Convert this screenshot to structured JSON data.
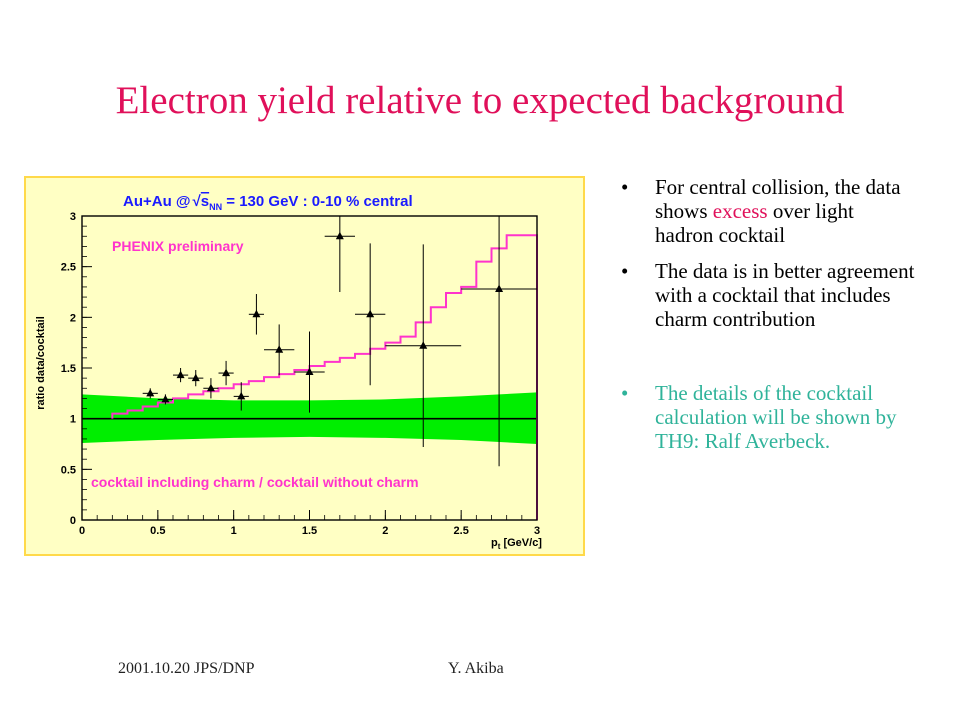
{
  "slide": {
    "title": "Electron yield relative to expected background",
    "bullets": [
      {
        "pre": "For central collision, the data shows ",
        "highlight": "excess",
        "post": " over light hadron cocktail"
      },
      {
        "text": "The data is in better agreement with a cocktail that includes charm contribution"
      },
      {
        "text": "The details of the cocktail calculation will be shown by TH9: Ralf Averbeck."
      }
    ],
    "bullet_glyph": "•",
    "footer_left": "2001.10.20 JPS/DNP",
    "footer_right": "Y. Akiba",
    "colors": {
      "title": "#e0105a",
      "highlight": "#e0105a",
      "note": "#2fb39a"
    }
  },
  "chart_data": {
    "type": "scatter",
    "title_prefix": "Au+Au @",
    "title_root": "s",
    "title_sub": "NN",
    "title_suffix": " = 130 GeV : 0-10 % central",
    "annotation_top": "PHENIX preliminary",
    "annotation_bottom": "cocktail including charm / cocktail without charm",
    "xlabel_main": "p",
    "xlabel_sub": "t",
    "xlabel_unit": " [GeV/c]",
    "ylabel": "ratio data/cocktail",
    "xlim": [
      0,
      3
    ],
    "ylim": [
      0,
      3
    ],
    "x_ticks": [
      0,
      0.5,
      1,
      1.5,
      2,
      2.5,
      3
    ],
    "x_tick_labels": [
      "0",
      "0.5",
      "1",
      "1.5",
      "2",
      "2.5",
      "3"
    ],
    "y_ticks": [
      0,
      0.5,
      1,
      1.5,
      2,
      2.5,
      3
    ],
    "y_tick_labels": [
      "0",
      "0.5",
      "1",
      "1.5",
      "2",
      "2.5",
      "3"
    ],
    "reference_line": 1.0,
    "band": {
      "x": [
        0,
        0.5,
        1,
        1.5,
        2,
        2.5,
        3
      ],
      "upper": [
        1.24,
        1.2,
        1.18,
        1.18,
        1.19,
        1.22,
        1.26
      ],
      "lower": [
        0.76,
        0.79,
        0.81,
        0.82,
        0.81,
        0.79,
        0.75
      ],
      "color": "#00ee00"
    },
    "charm_ratio": {
      "edges": [
        0.2,
        0.3,
        0.4,
        0.5,
        0.6,
        0.7,
        0.8,
        0.9,
        1.0,
        1.1,
        1.2,
        1.3,
        1.4,
        1.5,
        1.6,
        1.7,
        1.8,
        1.9,
        2.0,
        2.1,
        2.2,
        2.3,
        2.4,
        2.5,
        2.6,
        2.7,
        2.8,
        2.9,
        3.0
      ],
      "values": [
        1.05,
        1.08,
        1.12,
        1.16,
        1.2,
        1.24,
        1.27,
        1.3,
        1.34,
        1.37,
        1.41,
        1.44,
        1.48,
        1.52,
        1.56,
        1.6,
        1.64,
        1.69,
        1.75,
        1.81,
        1.95,
        2.1,
        2.24,
        2.3,
        2.55,
        2.68,
        2.81,
        2.81
      ],
      "color": "#ff33cc"
    },
    "points": [
      {
        "x": 0.45,
        "y": 1.25,
        "xerr": 0.05,
        "yerr": 0.05
      },
      {
        "x": 0.55,
        "y": 1.19,
        "xerr": 0.05,
        "yerr": 0.05
      },
      {
        "x": 0.65,
        "y": 1.43,
        "xerr": 0.05,
        "yerr": 0.07
      },
      {
        "x": 0.75,
        "y": 1.4,
        "xerr": 0.05,
        "yerr": 0.08
      },
      {
        "x": 0.85,
        "y": 1.3,
        "xerr": 0.05,
        "yerr": 0.1
      },
      {
        "x": 0.95,
        "y": 1.45,
        "xerr": 0.05,
        "yerr": 0.12
      },
      {
        "x": 1.05,
        "y": 1.22,
        "xerr": 0.05,
        "yerr": 0.14
      },
      {
        "x": 1.15,
        "y": 2.03,
        "xerr": 0.05,
        "yerr": 0.2
      },
      {
        "x": 1.3,
        "y": 1.68,
        "xerr": 0.1,
        "yerr": 0.25
      },
      {
        "x": 1.5,
        "y": 1.46,
        "xerr": 0.1,
        "yerr": 0.4
      },
      {
        "x": 1.7,
        "y": 2.8,
        "xerr": 0.1,
        "yerr": 0.55
      },
      {
        "x": 1.9,
        "y": 2.03,
        "xerr": 0.1,
        "yerr": 0.7
      },
      {
        "x": 2.25,
        "y": 1.72,
        "xerr": 0.25,
        "yerr": 1.0
      },
      {
        "x": 2.75,
        "y": 2.28,
        "xerr": 0.25,
        "yerr": 1.75
      }
    ],
    "axis_color": "#000000",
    "title_color": "#1a1aff",
    "annotation_color": "#ff33cc"
  }
}
